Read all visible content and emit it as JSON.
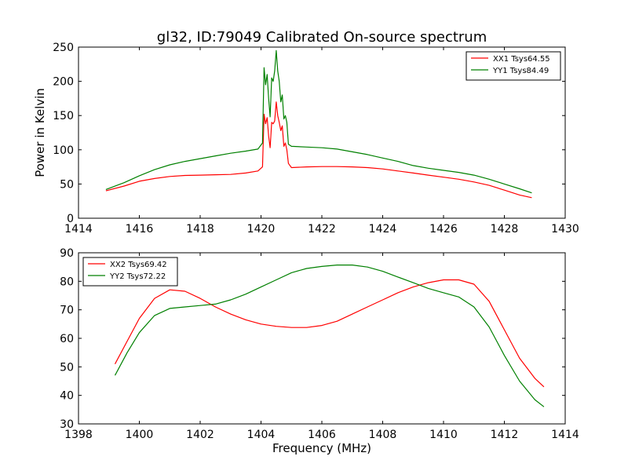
{
  "figure_title": "gl32, ID:79049 Calibrated On-source spectrum",
  "colors": {
    "red": "#ff0000",
    "green": "#008000",
    "axis": "#000000",
    "background": "#ffffff"
  },
  "chart_data": [
    {
      "type": "line",
      "title": "gl32, ID:79049 Calibrated On-source spectrum",
      "xlabel": "",
      "ylabel": "Power in Kelvin",
      "xlim": [
        1414,
        1430
      ],
      "ylim": [
        0,
        250
      ],
      "xticks": [
        1414,
        1416,
        1418,
        1420,
        1422,
        1424,
        1426,
        1428,
        1430
      ],
      "yticks": [
        0,
        50,
        100,
        150,
        200,
        250
      ],
      "grid": false,
      "legend_position": "top-right",
      "series": [
        {
          "name": "XX1 Tsys64.55",
          "color": "#ff0000",
          "x": [
            1414.9,
            1415.5,
            1416.0,
            1416.5,
            1417.0,
            1417.5,
            1418.0,
            1418.5,
            1419.0,
            1419.5,
            1419.9,
            1420.05,
            1420.1,
            1420.15,
            1420.2,
            1420.25,
            1420.3,
            1420.35,
            1420.4,
            1420.45,
            1420.5,
            1420.55,
            1420.6,
            1420.65,
            1420.7,
            1420.75,
            1420.8,
            1420.85,
            1420.9,
            1421.0,
            1421.5,
            1422.0,
            1422.5,
            1423.0,
            1423.5,
            1424.0,
            1424.5,
            1425.0,
            1425.5,
            1426.0,
            1426.5,
            1427.0,
            1427.5,
            1428.0,
            1428.5,
            1428.9
          ],
          "y": [
            40,
            47,
            54,
            58,
            61,
            62.5,
            63,
            63.5,
            64,
            66,
            69,
            75,
            152,
            138,
            147,
            120,
            103,
            140,
            138,
            142,
            170,
            150,
            140,
            128,
            135,
            105,
            110,
            100,
            80,
            74,
            75,
            75.5,
            75.5,
            75,
            74,
            72,
            69,
            66,
            63,
            60,
            57,
            53,
            48,
            41,
            34,
            30
          ]
        },
        {
          "name": "YY1 Tsys84.49",
          "color": "#008000",
          "x": [
            1414.9,
            1415.5,
            1416.0,
            1416.5,
            1417.0,
            1417.5,
            1418.0,
            1418.5,
            1419.0,
            1419.5,
            1419.9,
            1420.05,
            1420.1,
            1420.15,
            1420.2,
            1420.25,
            1420.3,
            1420.35,
            1420.4,
            1420.45,
            1420.5,
            1420.55,
            1420.6,
            1420.65,
            1420.7,
            1420.75,
            1420.8,
            1420.85,
            1420.9,
            1421.0,
            1421.5,
            1422.0,
            1422.5,
            1423.0,
            1423.5,
            1424.0,
            1424.5,
            1425.0,
            1425.5,
            1426.0,
            1426.5,
            1427.0,
            1427.5,
            1428.0,
            1428.5,
            1428.9
          ],
          "y": [
            42,
            52,
            62,
            71,
            78,
            83,
            87,
            91,
            95,
            98,
            101,
            110,
            220,
            195,
            210,
            175,
            148,
            205,
            200,
            215,
            245,
            215,
            200,
            170,
            180,
            145,
            150,
            140,
            108,
            105,
            104,
            103,
            101,
            97,
            93,
            88,
            83,
            77,
            73,
            70,
            67,
            63,
            57,
            50,
            43,
            37
          ]
        }
      ]
    },
    {
      "type": "line",
      "title": "",
      "xlabel": "Frequency (MHz)",
      "ylabel": "",
      "xlim": [
        1398,
        1414
      ],
      "ylim": [
        30,
        90
      ],
      "xticks": [
        1398,
        1400,
        1402,
        1404,
        1406,
        1408,
        1410,
        1412,
        1414
      ],
      "yticks": [
        30,
        40,
        50,
        60,
        70,
        80,
        90
      ],
      "grid": false,
      "legend_position": "top-left",
      "series": [
        {
          "name": "XX2 Tsys69.42",
          "color": "#ff0000",
          "x": [
            1399.2,
            1399.6,
            1400.0,
            1400.5,
            1401.0,
            1401.5,
            1402.0,
            1402.5,
            1403.0,
            1403.5,
            1404.0,
            1404.5,
            1405.0,
            1405.5,
            1406.0,
            1406.5,
            1407.0,
            1407.5,
            1408.0,
            1408.5,
            1409.0,
            1409.5,
            1410.0,
            1410.5,
            1411.0,
            1411.5,
            1412.0,
            1412.5,
            1413.0,
            1413.3
          ],
          "y": [
            51,
            59,
            67,
            74,
            77,
            76.5,
            74,
            71,
            68.5,
            66.5,
            65,
            64.2,
            63.8,
            63.8,
            64.5,
            66,
            68.5,
            71,
            73.5,
            76,
            78,
            79.5,
            80.5,
            80.5,
            79,
            73,
            63,
            53,
            46,
            43
          ]
        },
        {
          "name": "YY2 Tsys72.22",
          "color": "#008000",
          "x": [
            1399.2,
            1399.6,
            1400.0,
            1400.5,
            1401.0,
            1401.5,
            1402.0,
            1402.5,
            1403.0,
            1403.5,
            1404.0,
            1404.5,
            1405.0,
            1405.5,
            1406.0,
            1406.5,
            1407.0,
            1407.5,
            1408.0,
            1408.5,
            1409.0,
            1409.5,
            1410.0,
            1410.5,
            1411.0,
            1411.5,
            1412.0,
            1412.5,
            1413.0,
            1413.3
          ],
          "y": [
            47,
            55,
            62,
            68,
            70.5,
            71,
            71.5,
            72,
            73.5,
            75.5,
            78,
            80.5,
            83,
            84.5,
            85.2,
            85.7,
            85.7,
            85,
            83.5,
            81.5,
            79.5,
            77.5,
            76,
            74.5,
            71,
            64,
            54,
            45,
            38.5,
            36
          ]
        }
      ]
    }
  ]
}
